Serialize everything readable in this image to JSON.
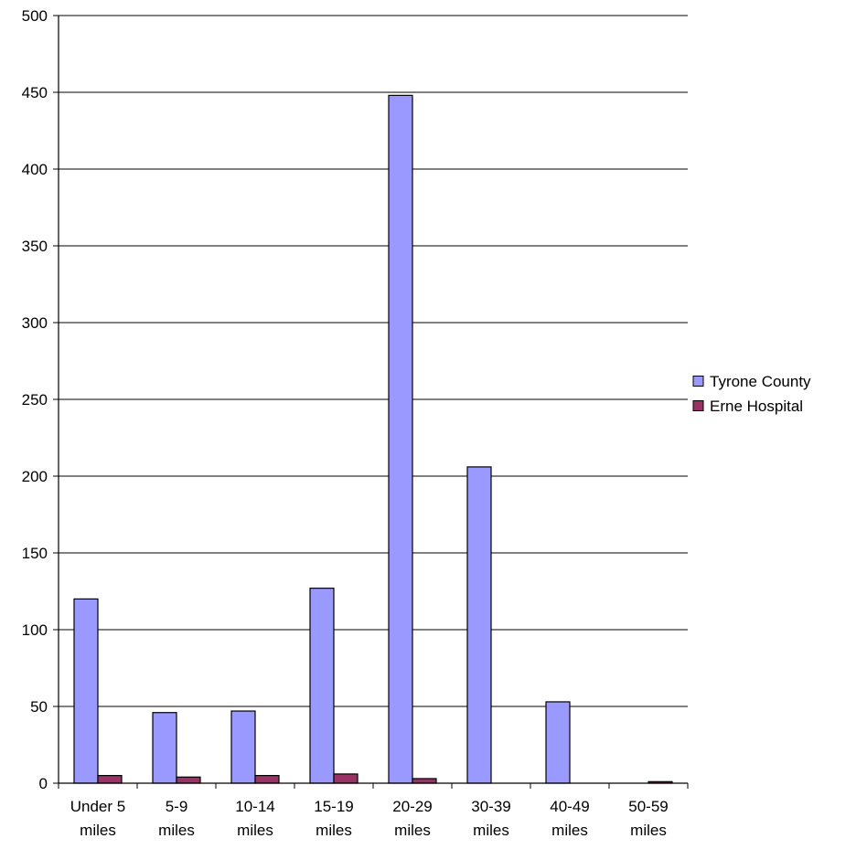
{
  "chart_data": {
    "type": "bar",
    "title": "",
    "xlabel": "",
    "ylabel": "",
    "ylim": [
      0,
      500
    ],
    "ytick_step": 50,
    "grid": true,
    "legend_position": "right",
    "categories": [
      [
        "Under 5",
        "miles"
      ],
      [
        "5-9",
        "miles"
      ],
      [
        "10-14",
        "miles"
      ],
      [
        "15-19",
        "miles"
      ],
      [
        "20-29",
        "miles"
      ],
      [
        "30-39",
        "miles"
      ],
      [
        "40-49",
        "miles"
      ],
      [
        "50-59",
        "miles"
      ]
    ],
    "series": [
      {
        "name": "Tyrone County",
        "color": "#9999ff",
        "values": [
          120,
          46,
          47,
          127,
          448,
          206,
          53,
          0
        ]
      },
      {
        "name": "Erne Hospital",
        "color": "#993366",
        "values": [
          5,
          4,
          5,
          6,
          3,
          0,
          0,
          1
        ]
      }
    ]
  }
}
